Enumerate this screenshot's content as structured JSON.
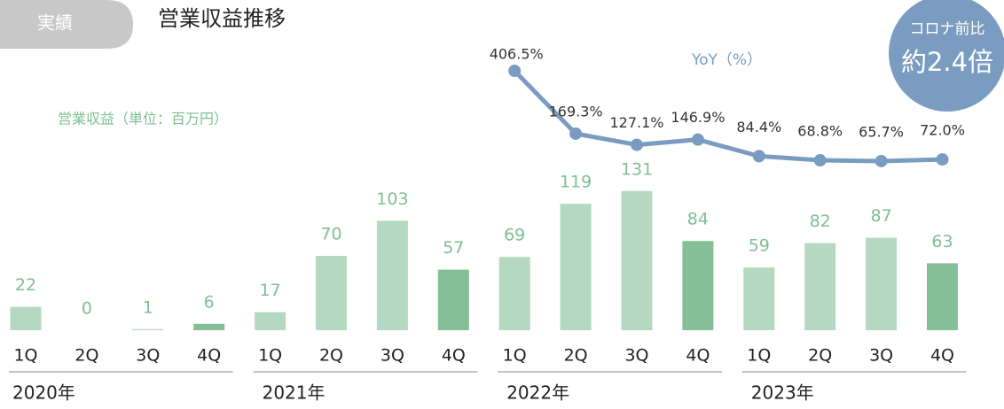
{
  "chart_data": {
    "type": "bar",
    "badge": "実績",
    "title": "営業収益推移",
    "categories": [
      "1Q",
      "2Q",
      "3Q",
      "4Q",
      "1Q",
      "2Q",
      "3Q",
      "4Q",
      "1Q",
      "2Q",
      "3Q",
      "4Q",
      "1Q",
      "2Q",
      "3Q",
      "4Q"
    ],
    "groups": [
      "2020年",
      "2021年",
      "2022年",
      "2023年"
    ],
    "series": [
      {
        "name": "営業収益（単位：百万円）",
        "type": "bar",
        "color": "#7fbf91",
        "colors": [
          "#b5d9c0",
          "#b5d9c0",
          "#b5d9c0",
          "#85bf98",
          "#b5d9c0",
          "#b5d9c0",
          "#b5d9c0",
          "#85bf98",
          "#b5d9c0",
          "#b5d9c0",
          "#b5d9c0",
          "#85bf98",
          "#b5d9c0",
          "#b5d9c0",
          "#b5d9c0",
          "#85bf98"
        ],
        "values": [
          22,
          0,
          1,
          6,
          17,
          70,
          103,
          57,
          69,
          119,
          131,
          84,
          59,
          82,
          87,
          63
        ]
      },
      {
        "name": "YoY（%）",
        "type": "line",
        "axis": "y2",
        "color": "#7a9cc0",
        "values": [
          null,
          null,
          null,
          null,
          null,
          null,
          null,
          null,
          406.5,
          169.3,
          127.1,
          146.9,
          84.4,
          68.8,
          65.7,
          72.0
        ],
        "value_labels": [
          null,
          null,
          null,
          null,
          null,
          null,
          null,
          null,
          "406.5%",
          "169.3%",
          "127.1%",
          "146.9%",
          "84.4%",
          "68.8%",
          "65.7%",
          "72.0%"
        ]
      }
    ],
    "annotation": {
      "title": "コロナ前比",
      "text": "約2.4倍",
      "color": "#7a9cc0"
    }
  }
}
